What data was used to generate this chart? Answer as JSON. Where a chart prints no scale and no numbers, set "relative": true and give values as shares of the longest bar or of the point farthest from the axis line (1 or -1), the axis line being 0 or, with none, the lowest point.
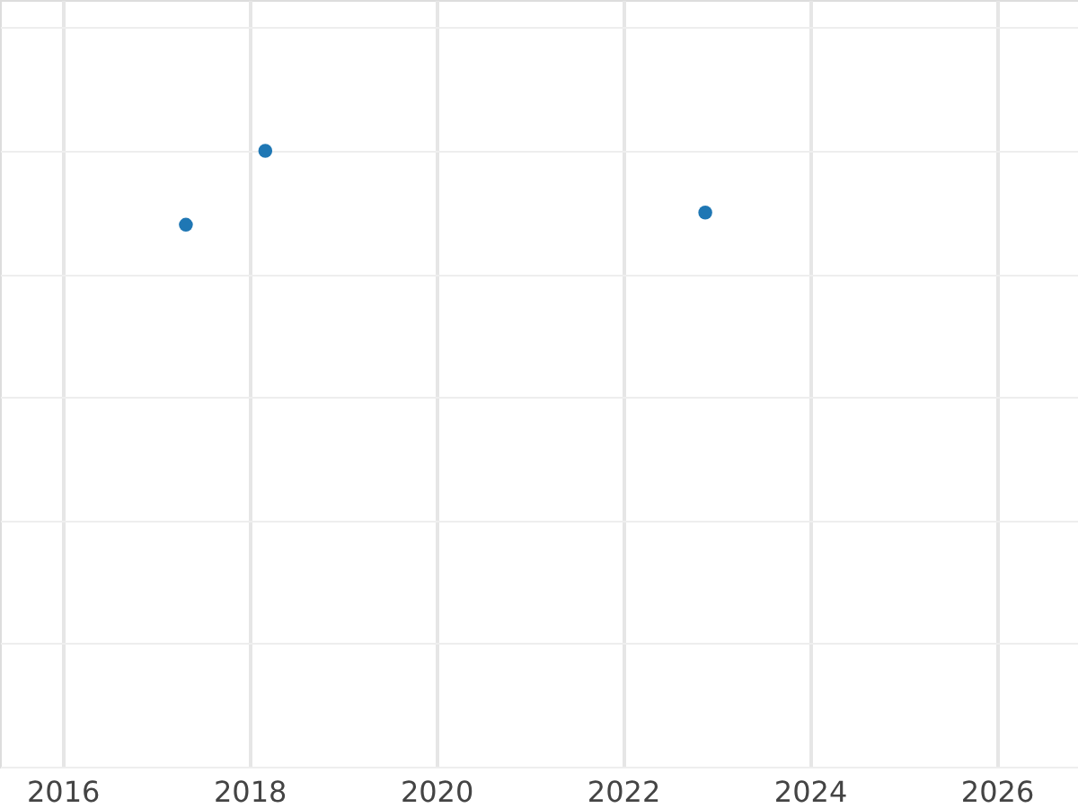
{
  "chart_data": {
    "type": "scatter",
    "relative": true,
    "x": [
      2017.32,
      2018.17,
      2022.88
    ],
    "series": [
      {
        "color": "#1f77b4",
        "values": [
          0.88,
          1.0,
          0.9
        ]
      }
    ],
    "xlim": [
      2015.33,
      2026.87
    ],
    "xticks": [
      2016,
      2018,
      2020,
      2022,
      2024,
      2026
    ],
    "grid": true,
    "marker": "circle"
  }
}
